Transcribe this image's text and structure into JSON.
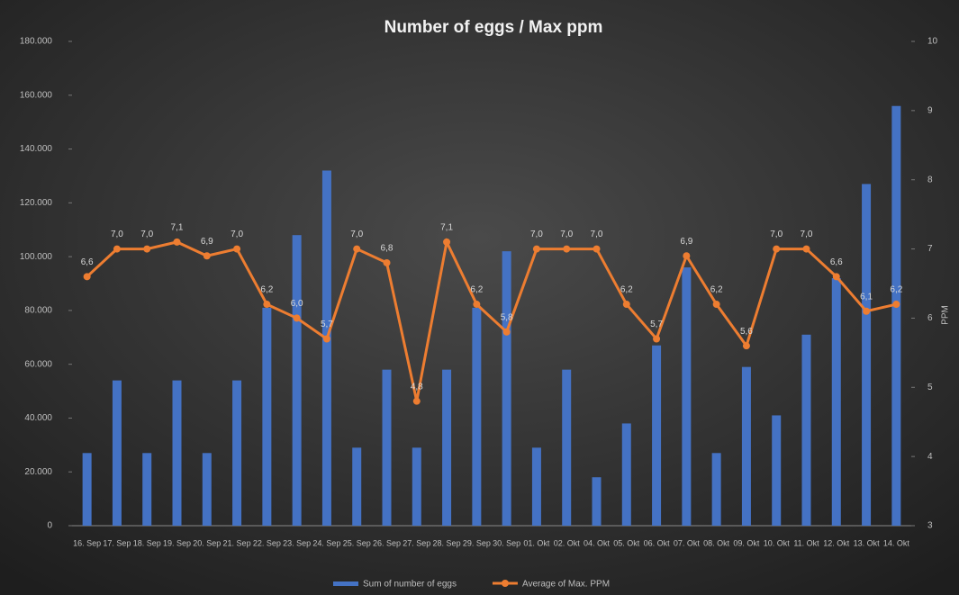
{
  "chart_data": {
    "type": "bar-line",
    "title": "Number of eggs / Max ppm",
    "categories": [
      "16. Sep",
      "17. Sep",
      "18. Sep",
      "19. Sep",
      "20. Sep",
      "21. Sep",
      "22. Sep",
      "23. Sep",
      "24. Sep",
      "25. Sep",
      "26. Sep",
      "27. Sep",
      "28. Sep",
      "29. Sep",
      "30. Sep",
      "01. Okt",
      "02. Okt",
      "04. Okt",
      "05. Okt",
      "06. Okt",
      "07. Okt",
      "08. Okt",
      "09. Okt",
      "10. Okt",
      "11. Okt",
      "12. Okt",
      "13. Okt",
      "14. Okt"
    ],
    "series": [
      {
        "name": "Sum of number of eggs",
        "color": "#4472c4",
        "type": "bar",
        "values": [
          27000,
          54000,
          27000,
          54000,
          27000,
          54000,
          81000,
          108000,
          132000,
          29000,
          58000,
          29000,
          58000,
          81000,
          102000,
          29000,
          58000,
          18000,
          38000,
          67000,
          96000,
          27000,
          59000,
          41000,
          71000,
          92000,
          127000,
          156000
        ]
      },
      {
        "name": "Average of Max. PPM",
        "color": "#ed7d31",
        "type": "line",
        "axis": "y2",
        "values": [
          6.6,
          7.0,
          7.0,
          7.1,
          6.9,
          7.0,
          6.2,
          6.0,
          5.7,
          7.0,
          6.8,
          4.8,
          7.1,
          6.2,
          5.8,
          7.0,
          7.0,
          7.0,
          6.2,
          5.7,
          6.9,
          6.2,
          5.6,
          7.0,
          7.0,
          6.6,
          6.1,
          6.2
        ],
        "value_labels": [
          "6,6",
          "7,0",
          "7,0",
          "7,1",
          "6,9",
          "7,0",
          "6,2",
          "6,0",
          "5,7",
          "7,0",
          "6,8",
          "4,8",
          "7,1",
          "6,2",
          "5,8",
          "7,0",
          "7,0",
          "7,0",
          "6,2",
          "5,7",
          "6,9",
          "6,2",
          "5,6",
          "7,0",
          "7,0",
          "6,6",
          "6,1",
          "6,2"
        ]
      }
    ],
    "ylim": [
      0,
      180000
    ],
    "yticks": [
      0,
      {
        "value": 20000,
        "label": "20.000"
      },
      {
        "value": 40000,
        "label": "40.000"
      },
      {
        "value": 60000,
        "label": "60.000"
      },
      {
        "value": 80000,
        "label": "80.000"
      },
      {
        "value": 100000,
        "label": "100.000"
      },
      {
        "value": 120000,
        "label": "120.000"
      },
      {
        "value": 140000,
        "label": "140.000"
      },
      {
        "value": 160000,
        "label": "160.000"
      },
      {
        "value": 180000,
        "label": "180.000"
      }
    ],
    "y2lim": [
      3,
      10
    ],
    "y2ticks": [
      3,
      4,
      5,
      6,
      7,
      8,
      9,
      10
    ],
    "y2label": "PPM",
    "grid": false,
    "legend": "bottom"
  }
}
